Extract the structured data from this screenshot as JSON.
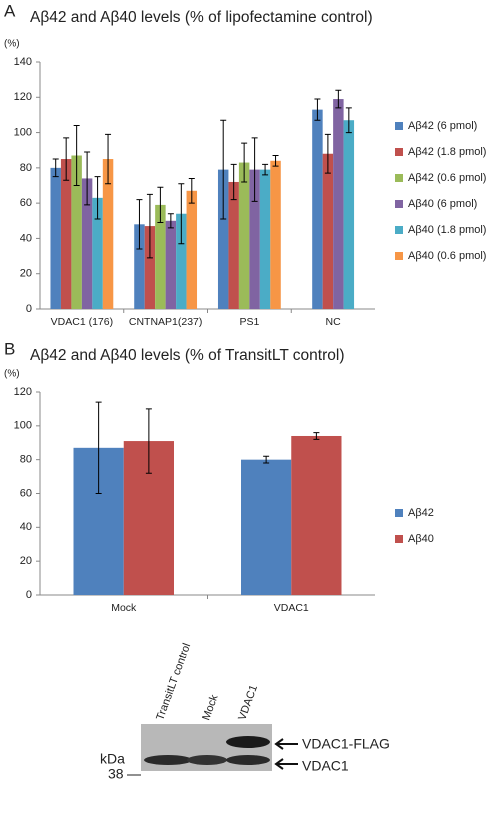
{
  "chart_data": [
    {
      "type": "bar",
      "panel": "A",
      "title": "Aβ42 and Aβ40 levels (% of lipofectamine control)",
      "y_unit": "(%)",
      "categories": [
        "VDAC1 (176)",
        "CNTNAP1(237)",
        "PS1",
        "NC"
      ],
      "series": [
        {
          "name": "Aβ42 (6 pmol)",
          "color": "#4f81bd",
          "values": [
            80,
            48,
            79,
            113
          ],
          "errors": [
            5,
            14,
            28,
            6
          ]
        },
        {
          "name": "Aβ42 (1.8 pmol)",
          "color": "#c0504d",
          "values": [
            85,
            47,
            72,
            88
          ],
          "errors": [
            12,
            18,
            10,
            11
          ]
        },
        {
          "name": "Aβ42 (0.6 pmol)",
          "color": "#9bbb59",
          "values": [
            87,
            59,
            83,
            null
          ],
          "errors": [
            17,
            10,
            11,
            null
          ]
        },
        {
          "name": "Aβ40 (6 pmol)",
          "color": "#8064a2",
          "values": [
            74,
            50,
            79,
            119
          ],
          "errors": [
            15,
            4,
            18,
            5
          ]
        },
        {
          "name": "Aβ40 (1.8 pmol)",
          "color": "#4bacc6",
          "values": [
            63,
            54,
            79,
            107
          ],
          "errors": [
            12,
            17,
            3,
            7
          ]
        },
        {
          "name": "Aβ40 (0.6 pmol)",
          "color": "#f79646",
          "values": [
            85,
            67,
            84,
            null
          ],
          "errors": [
            14,
            7,
            3,
            null
          ]
        }
      ],
      "ylim": [
        0,
        140
      ],
      "yticks": [
        0,
        20,
        40,
        60,
        80,
        100,
        120,
        140
      ],
      "grid": false
    },
    {
      "type": "bar",
      "panel": "B",
      "title": "Aβ42 and Aβ40 levels (% of TransitLT control)",
      "y_unit": "(%)",
      "categories": [
        "Mock",
        "VDAC1"
      ],
      "series": [
        {
          "name": "Aβ42",
          "color": "#4f81bd",
          "values": [
            87,
            80
          ],
          "errors": [
            27,
            2
          ]
        },
        {
          "name": "Aβ40",
          "color": "#c0504d",
          "values": [
            91,
            94
          ],
          "errors": [
            19,
            2
          ]
        }
      ],
      "ylim": [
        0,
        120
      ],
      "yticks": [
        0,
        20,
        40,
        60,
        80,
        100,
        120
      ],
      "grid": false
    }
  ],
  "blot": {
    "lanes": [
      "TransitLT control",
      "Mock",
      "VDAC1"
    ],
    "marker_unit": "kDa",
    "marker": "38",
    "bands": [
      "VDAC1-FLAG",
      "VDAC1"
    ]
  }
}
